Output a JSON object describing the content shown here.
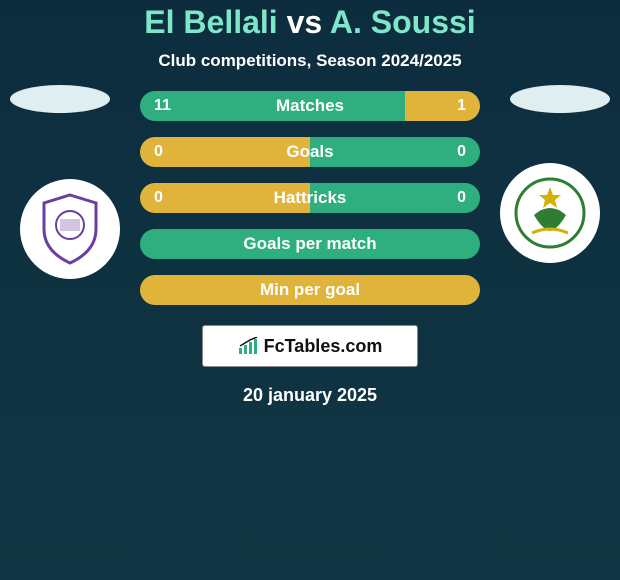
{
  "background_gradient": {
    "from": "#0d2d3e",
    "to": "#103643"
  },
  "title": {
    "player1": "El Bellali",
    "vs": "vs",
    "player2": "A. Soussi",
    "color_p1": "#7fe6c9",
    "color_vs": "#ffffff",
    "color_p2": "#7fe6c9"
  },
  "subtitle": {
    "text": "Club competitions, Season 2024/2025",
    "color": "#ffffff"
  },
  "avatars": {
    "ellipse_color": "#dfeef0",
    "left_badge_border": "#6b3fa0",
    "right_badge_border": "#2e7d32"
  },
  "stats": [
    {
      "label": "Matches",
      "left_value": "11",
      "right_value": "1",
      "left_share": 0.78,
      "right_share": 0.22,
      "left_color": "#2fae7f",
      "right_color": "#e0b33a",
      "label_color": "#ffffff",
      "value_color": "#ffffff",
      "single": false
    },
    {
      "label": "Goals",
      "left_value": "0",
      "right_value": "0",
      "left_share": 0.5,
      "right_share": 0.5,
      "left_color": "#e0b33a",
      "right_color": "#2fae7f",
      "label_color": "#ffffff",
      "value_color": "#ffffff",
      "single": false
    },
    {
      "label": "Hattricks",
      "left_value": "0",
      "right_value": "0",
      "left_share": 0.5,
      "right_share": 0.5,
      "left_color": "#e0b33a",
      "right_color": "#2fae7f",
      "label_color": "#ffffff",
      "value_color": "#ffffff",
      "single": false
    },
    {
      "label": "Goals per match",
      "single": true,
      "color": "#2fae7f",
      "label_color": "#ffffff"
    },
    {
      "label": "Min per goal",
      "single": true,
      "color": "#e0b33a",
      "label_color": "#ffffff"
    }
  ],
  "brand": {
    "text": "FcTables.com",
    "icon_color": "#2fae7f",
    "box_bg": "#ffffff"
  },
  "date": {
    "text": "20 january 2025",
    "color": "#ffffff"
  }
}
